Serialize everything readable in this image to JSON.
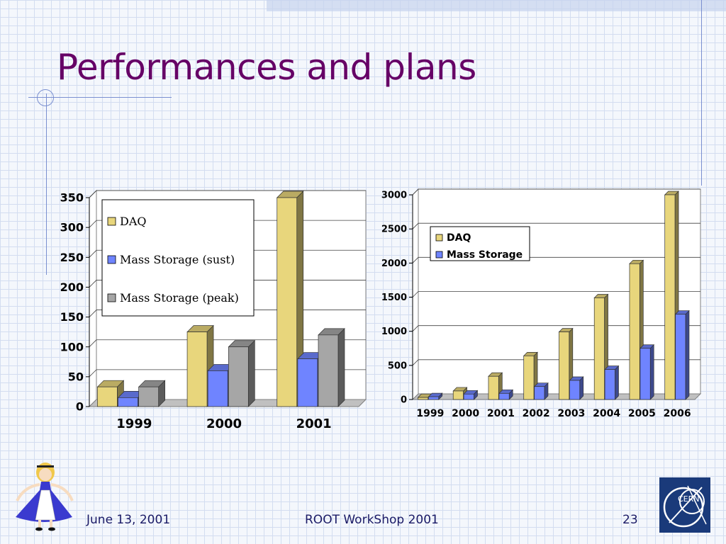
{
  "slide": {
    "title": "Performances and plans",
    "footer": {
      "date": "June 13, 2001",
      "event": "ROOT WorkShop 2001",
      "page": "23"
    },
    "logo_text": "CERN"
  },
  "colors": {
    "title": "#660066",
    "daq": "#e8d67c",
    "mass_storage": "#6f84ff",
    "mass_storage_peak": "#a6a6a6",
    "footer": "#1a1a66"
  },
  "chart_data": [
    {
      "type": "bar",
      "categories": [
        "1999",
        "2000",
        "2001"
      ],
      "series": [
        {
          "name": "DAQ",
          "values": [
            33,
            125,
            350
          ]
        },
        {
          "name": "Mass Storage (sust)",
          "values": [
            15,
            60,
            80
          ]
        },
        {
          "name": "Mass Storage (peak)",
          "values": [
            33,
            100,
            120
          ]
        }
      ],
      "title": "",
      "xlabel": "",
      "ylabel": "",
      "ylim": [
        0,
        350
      ],
      "yticks": [
        "0",
        "50",
        "100",
        "150",
        "200",
        "250",
        "300",
        "350"
      ],
      "grid": true,
      "legend": "top-left"
    },
    {
      "type": "bar",
      "categories": [
        "1999",
        "2000",
        "2001",
        "2002",
        "2003",
        "2004",
        "2005",
        "2006"
      ],
      "series": [
        {
          "name": "DAQ",
          "values": [
            30,
            125,
            340,
            640,
            990,
            1490,
            1990,
            3000
          ]
        },
        {
          "name": "Mass Storage",
          "values": [
            40,
            80,
            90,
            190,
            280,
            440,
            750,
            1250
          ]
        }
      ],
      "title": "",
      "xlabel": "",
      "ylabel": "",
      "ylim": [
        0,
        3000
      ],
      "yticks": [
        "0",
        "500",
        "1000",
        "1500",
        "2000",
        "2500",
        "3000"
      ],
      "grid": true,
      "legend": "top-left"
    }
  ]
}
